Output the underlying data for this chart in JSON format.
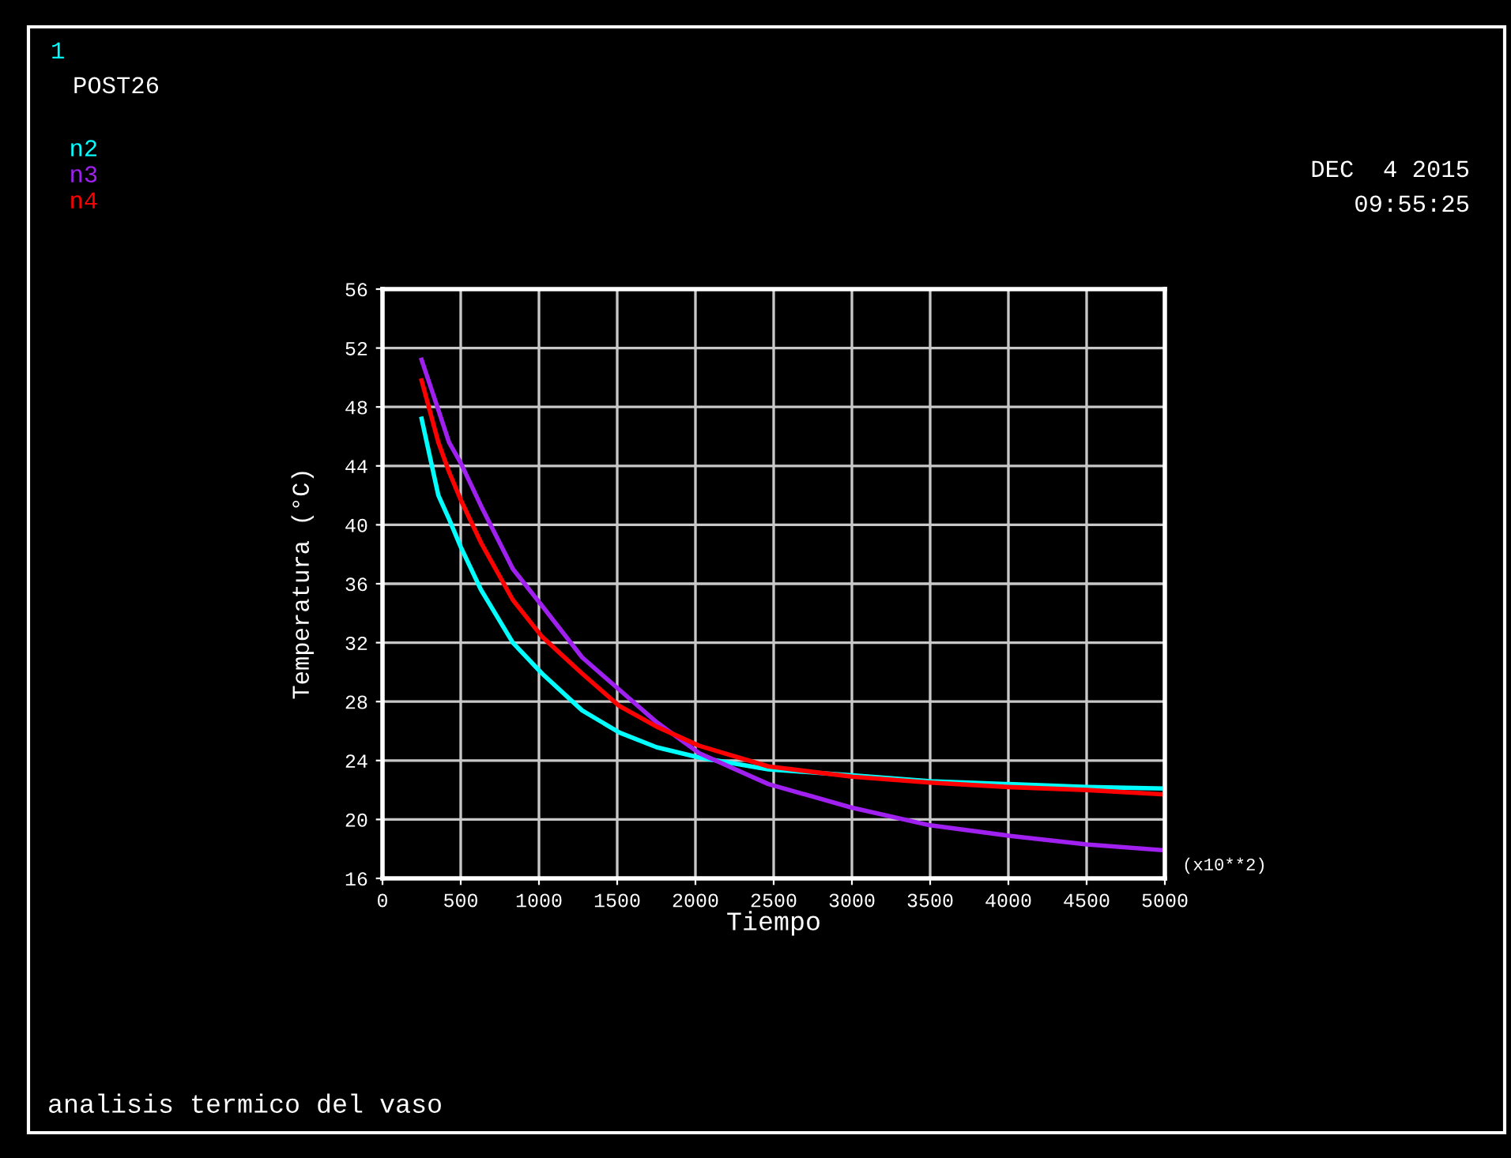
{
  "chart_data": {
    "type": "line",
    "xlabel": "Tiempo",
    "ylabel": "Temperatura (°C)",
    "x": [
      250,
      357,
      425,
      500,
      629,
      833,
      1020,
      1276,
      1514,
      1752,
      2024,
      2466,
      3000,
      3500,
      4000,
      4500,
      5000
    ],
    "series": [
      {
        "name": "n2",
        "color": "#00ffff",
        "values": [
          47.2,
          42.0,
          40.4,
          38.5,
          35.6,
          32.0,
          29.9,
          27.4,
          25.9,
          24.9,
          24.2,
          23.4,
          23.0,
          22.6,
          22.4,
          22.2,
          22.1
        ]
      },
      {
        "name": "n3",
        "color": "#a020f0",
        "values": [
          51.2,
          47.8,
          45.6,
          44.2,
          41.3,
          37.0,
          34.5,
          31.0,
          28.8,
          26.6,
          24.5,
          22.4,
          20.8,
          19.6,
          18.9,
          18.3,
          17.9
        ]
      },
      {
        "name": "n4",
        "color": "#ff0000",
        "values": [
          49.8,
          45.6,
          43.6,
          41.7,
          38.8,
          34.9,
          32.4,
          29.9,
          27.7,
          26.3,
          25.0,
          23.6,
          22.9,
          22.5,
          22.2,
          22.0,
          21.7
        ]
      }
    ],
    "xlim": [
      0,
      5000
    ],
    "xticks": [
      0,
      500,
      1000,
      1500,
      2000,
      2500,
      3000,
      3500,
      4000,
      4500,
      5000
    ],
    "ylim": [
      16,
      56
    ],
    "yticks": [
      16,
      20,
      24,
      28,
      32,
      36,
      40,
      44,
      48,
      52,
      56
    ],
    "grid": true,
    "legend": "top left",
    "marker": "none",
    "line_style": "solid",
    "annotations": [
      "1",
      "POST26",
      "DEC  4 2015",
      "09:55:25",
      "(x10**2)",
      "analisis termico del vaso"
    ]
  }
}
